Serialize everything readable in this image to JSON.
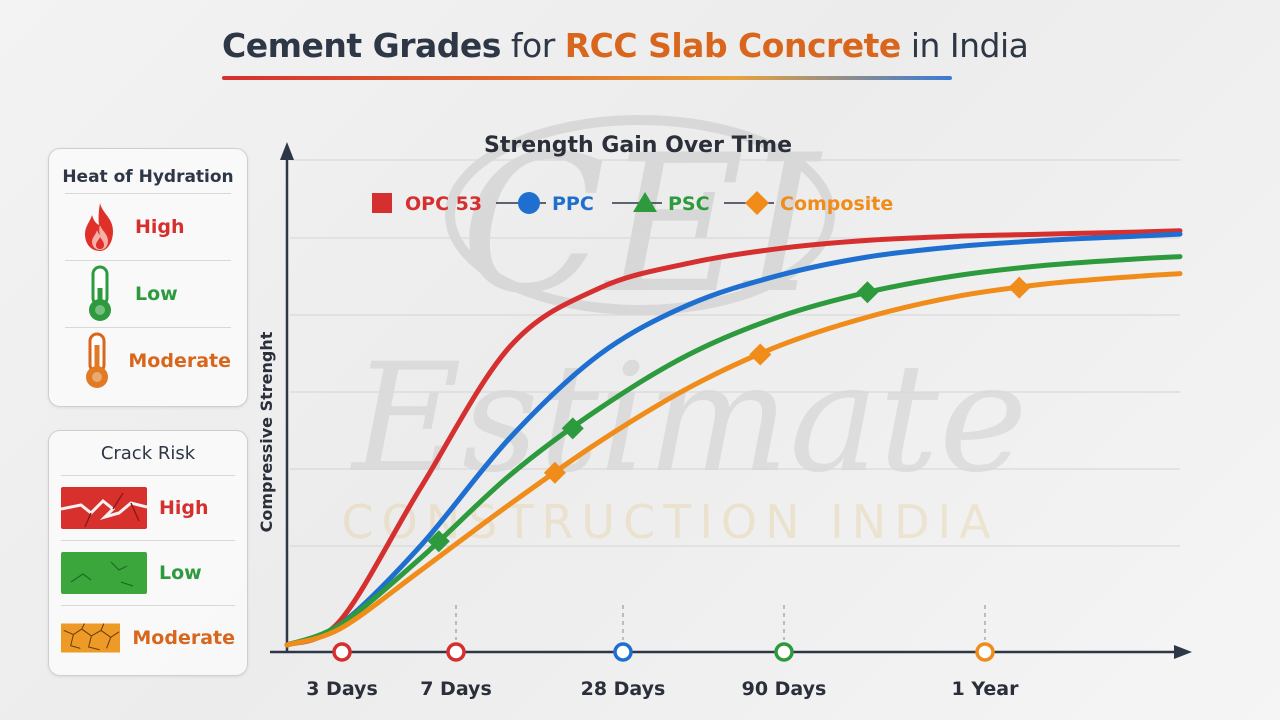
{
  "title": {
    "part1": "Cement Grades",
    "part2": " for ",
    "part3": "RCC Slab Concrete",
    "part4": " in India"
  },
  "watermark": {
    "logo": "CEI",
    "word": "Estimate",
    "tagline": "CONSTRUCTION INDIA"
  },
  "heat_panel": {
    "title": "Heat of Hydration",
    "rows": [
      {
        "label": "High",
        "icon": "flame-icon",
        "color": "#d62f2f"
      },
      {
        "label": "Low",
        "icon": "thermometer-low-icon",
        "color": "#2e9a3e"
      },
      {
        "label": "Moderate",
        "icon": "thermometer-moderate-icon",
        "color": "#d8661c"
      }
    ]
  },
  "crack_panel": {
    "title": "Crack Risk",
    "rows": [
      {
        "label": "High",
        "icon": "cracked-red-swatch",
        "color": "#d62f2f"
      },
      {
        "label": "Low",
        "icon": "cracked-green-swatch",
        "color": "#2e9a3e"
      },
      {
        "label": "Moderate",
        "icon": "cracked-orange-swatch",
        "color": "#d8661c"
      }
    ]
  },
  "chart_data": {
    "type": "line",
    "title": "Strength Gain Over Time",
    "xlabel": "",
    "ylabel": "Compressive Strenght",
    "x_ticks": [
      "3 Days",
      "7 Days",
      "28 Days",
      "90 Days",
      "1 Year"
    ],
    "tick_marker_colors": [
      "#d62f2f",
      "#d62f2f",
      "#1f6fd1",
      "#2e9a3e",
      "#ef8c1a"
    ],
    "x": [
      0,
      0.06,
      0.15,
      0.25,
      0.35,
      0.45,
      0.55,
      0.65,
      0.75,
      0.85,
      0.95,
      1.0
    ],
    "ylim": [
      0,
      100
    ],
    "grid": true,
    "legend": "top",
    "series": [
      {
        "name": "OPC 53",
        "marker": "square",
        "color": "#d62f2f",
        "values": [
          0,
          6,
          38,
          72,
          86,
          92,
          95.5,
          97.5,
          98.5,
          99,
          99.5,
          99.8
        ]
      },
      {
        "name": "PPC",
        "marker": "circle",
        "color": "#1f6fd1",
        "values": [
          0,
          5,
          24,
          50,
          70,
          82,
          89,
          93.5,
          96,
          97.5,
          98.5,
          99
        ]
      },
      {
        "name": "PSC",
        "marker": "triangle",
        "color": "#2e9a3e",
        "values": [
          0,
          5,
          21,
          41,
          57,
          70,
          79,
          85,
          89,
          91.5,
          93,
          93.6
        ]
      },
      {
        "name": "Composite",
        "marker": "diamond",
        "color": "#ef8c1a",
        "values": [
          0,
          4,
          18,
          34,
          49,
          62,
          72,
          79,
          84,
          87,
          88.8,
          89.5
        ]
      }
    ]
  }
}
